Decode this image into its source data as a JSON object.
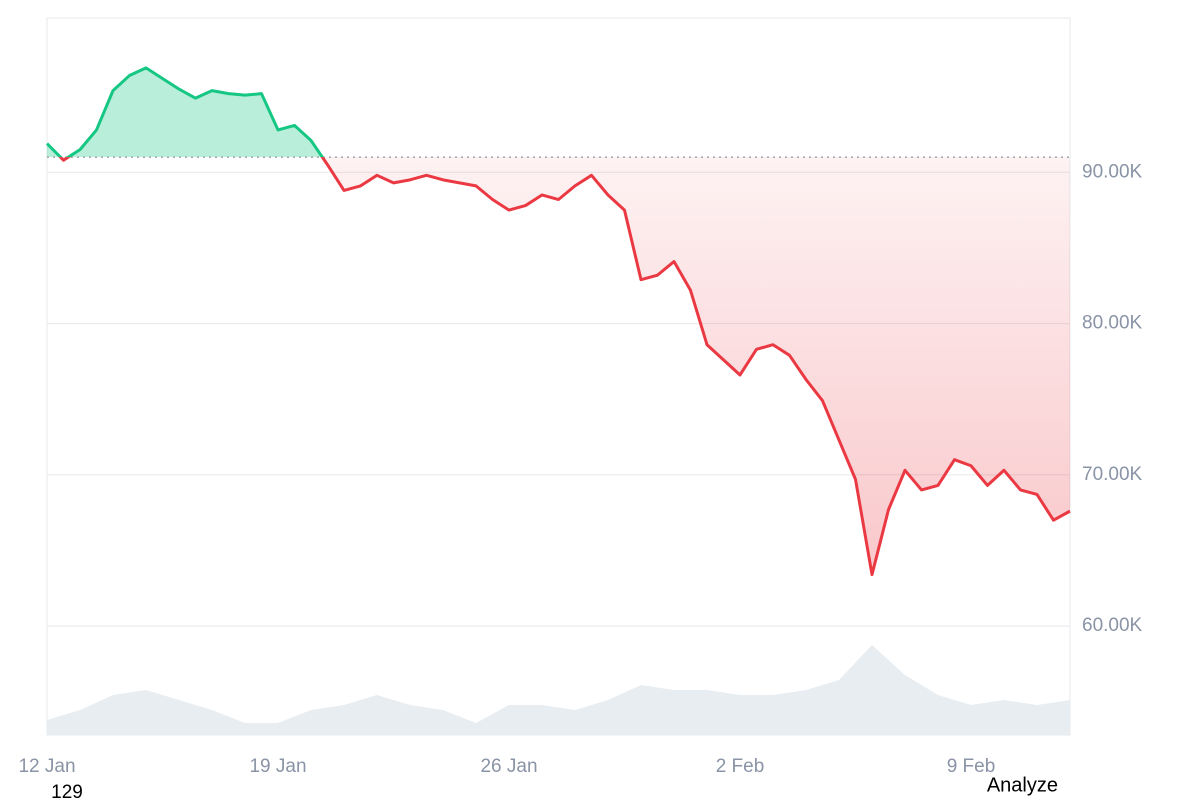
{
  "chart_data": {
    "type": "line",
    "x": [
      0,
      0.5,
      1,
      1.5,
      2,
      2.5,
      3,
      3.5,
      4,
      4.5,
      5,
      5.5,
      6,
      6.5,
      7,
      7.5,
      8,
      8.5,
      9,
      9.5,
      10,
      10.5,
      11,
      11.5,
      12,
      12.5,
      13,
      13.5,
      14,
      14.5,
      15,
      15.5,
      16,
      16.5,
      17,
      17.5,
      18,
      18.5,
      19,
      19.5,
      20,
      20.5,
      21,
      21.5,
      22,
      22.5,
      23,
      23.5,
      24,
      24.5,
      25,
      25.5,
      26,
      26.5,
      27,
      27.5,
      28,
      28.5,
      29,
      29.5,
      30,
      30.5,
      31
    ],
    "series": [
      {
        "name": "Price",
        "color": "#ea3943",
        "up_color": "#16c784",
        "values": [
          91900,
          90800,
          91500,
          92800,
          95400,
          96400,
          96900,
          96200,
          95500,
          94900,
          95400,
          95200,
          95100,
          95200,
          92800,
          93100,
          92100,
          90500,
          88800,
          89100,
          89800,
          89300,
          89500,
          89800,
          89500,
          89300,
          89100,
          88200,
          87500,
          87800,
          88500,
          88200,
          89100,
          89800,
          88500,
          87500,
          82900,
          83200,
          84100,
          82200,
          78600,
          77600,
          76600,
          78300,
          78600,
          77900,
          76300,
          74900,
          72300,
          69700,
          63400,
          67700,
          70300,
          69000,
          69300,
          71000,
          70600,
          69300,
          70300,
          69000,
          68700,
          67000,
          67600
        ]
      },
      {
        "name": "Volume",
        "axis": "y2",
        "color": "#e8edf2",
        "x": [
          0,
          1,
          2,
          3,
          4,
          5,
          6,
          7,
          8,
          9,
          10,
          11,
          12,
          13,
          14,
          15,
          16,
          17,
          18,
          19,
          20,
          21,
          22,
          23,
          24,
          25,
          26,
          27,
          28,
          29,
          30,
          31
        ],
        "values": [
          15,
          25,
          40,
          45,
          35,
          25,
          12,
          12,
          25,
          30,
          40,
          30,
          25,
          12,
          30,
          30,
          25,
          35,
          50,
          45,
          45,
          40,
          40,
          45,
          55,
          90,
          60,
          40,
          30,
          35,
          30,
          35
        ]
      }
    ],
    "baseline": 91000,
    "xlim": [
      0,
      31
    ],
    "xticks": [
      {
        "value": 0,
        "label": "12 Jan"
      },
      {
        "value": 7,
        "label": "19 Jan"
      },
      {
        "value": 14,
        "label": "26 Jan"
      },
      {
        "value": 21,
        "label": "2 Feb"
      },
      {
        "value": 28,
        "label": "9 Feb"
      }
    ],
    "ylim": [
      52800,
      100200
    ],
    "yticks": [
      {
        "value": 60000,
        "label": "60.00K"
      },
      {
        "value": 70000,
        "label": "70.00K"
      },
      {
        "value": 80000,
        "label": "80.00K"
      },
      {
        "value": 90000,
        "label": "90.00K"
      }
    ],
    "y2lim": [
      0,
      100
    ],
    "grid": true,
    "annotations": [
      "129",
      "Analyze"
    ]
  }
}
